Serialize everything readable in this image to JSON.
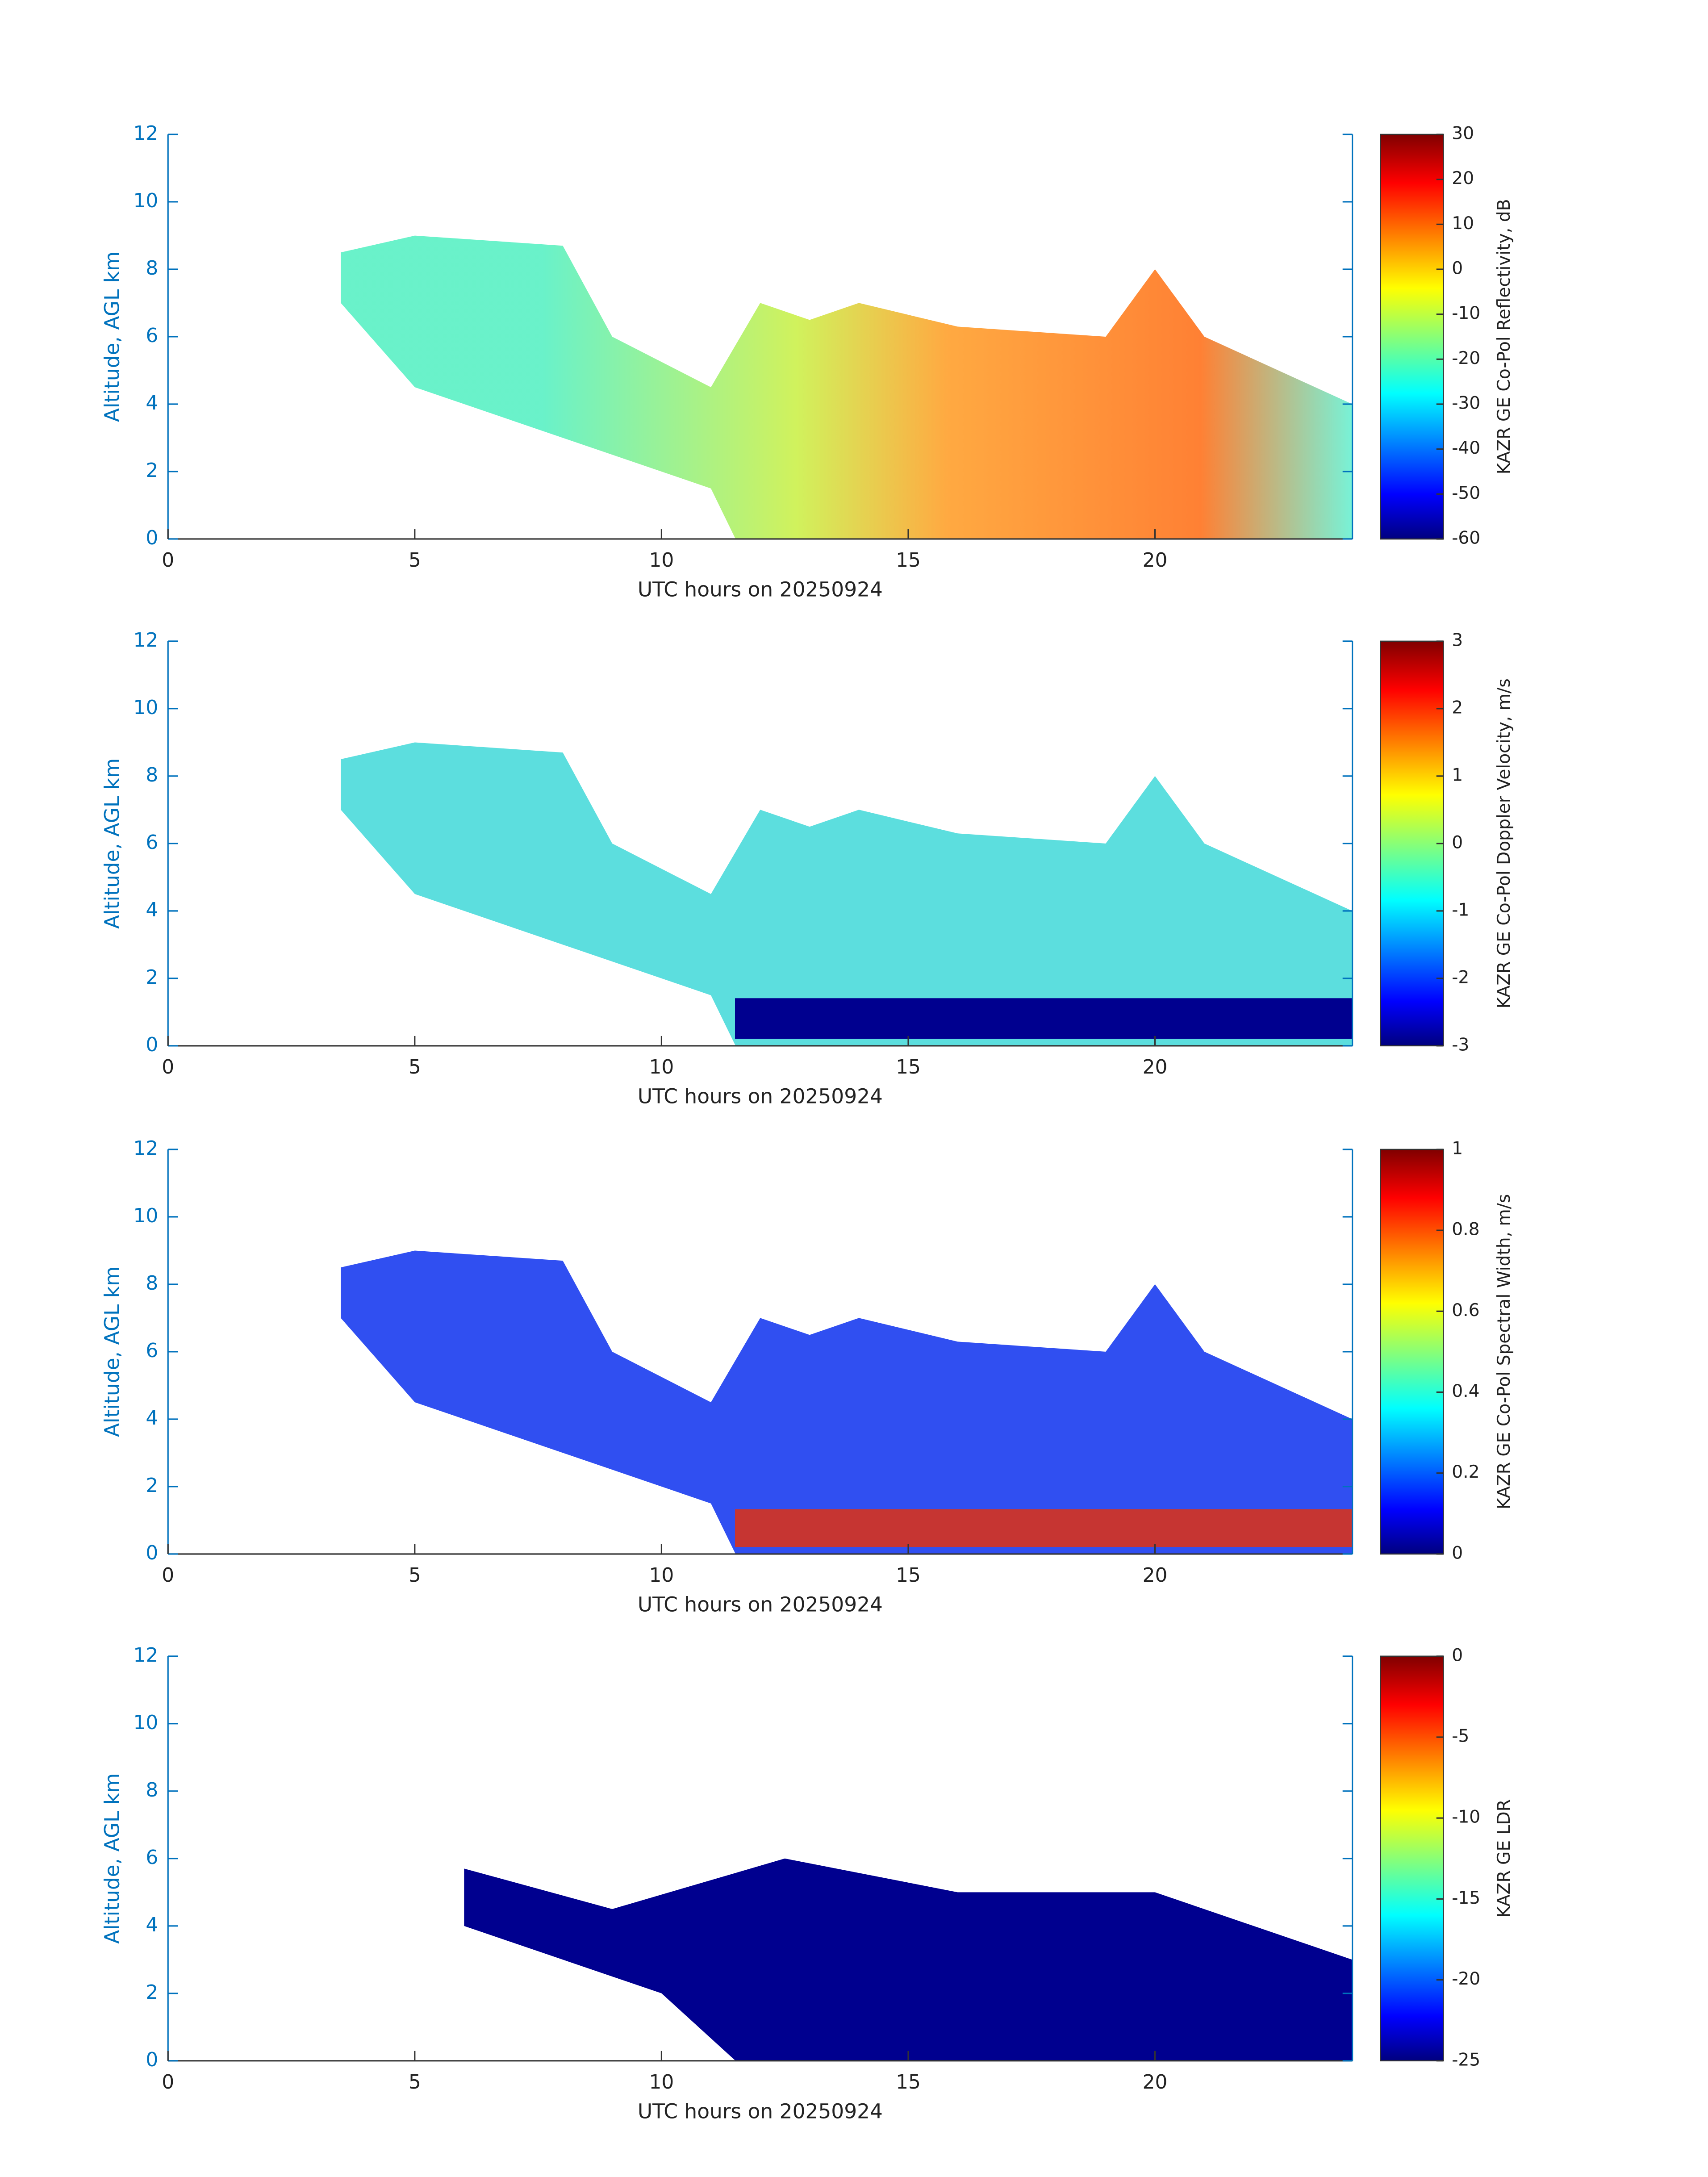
{
  "chart_data": [
    {
      "type": "heatmap",
      "x_label": "UTC hours on 20250924",
      "y_label": "Altitude, AGL km",
      "xlim": [
        0,
        24
      ],
      "xticks": [
        0,
        5,
        10,
        15,
        20
      ],
      "ylim": [
        0,
        12
      ],
      "yticks": [
        0,
        2,
        4,
        6,
        8,
        10,
        12
      ],
      "colorbar_label": "KAZR GE Co-Pol Reflectivity, dB",
      "colormap": "jet",
      "clim": [
        -60,
        30
      ],
      "cticks": [
        -60,
        -50,
        -40,
        -30,
        -20,
        -10,
        0,
        10,
        20,
        30
      ]
    },
    {
      "type": "heatmap",
      "x_label": "UTC hours on 20250924",
      "y_label": "Altitude, AGL km",
      "xlim": [
        0,
        24
      ],
      "xticks": [
        0,
        5,
        10,
        15,
        20
      ],
      "ylim": [
        0,
        12
      ],
      "yticks": [
        0,
        2,
        4,
        6,
        8,
        10,
        12
      ],
      "colorbar_label": "KAZR GE Co-Pol Doppler Velocity, m/s",
      "colormap": "jet",
      "clim": [
        -3,
        3
      ],
      "cticks": [
        -3,
        -2,
        -1,
        0,
        1,
        2,
        3
      ]
    },
    {
      "type": "heatmap",
      "x_label": "UTC hours on 20250924",
      "y_label": "Altitude, AGL km",
      "xlim": [
        0,
        24
      ],
      "xticks": [
        0,
        5,
        10,
        15,
        20
      ],
      "ylim": [
        0,
        12
      ],
      "yticks": [
        0,
        2,
        4,
        6,
        8,
        10,
        12
      ],
      "colorbar_label": "KAZR GE Co-Pol Spectral Width, m/s",
      "colormap": "jet",
      "clim": [
        0,
        1
      ],
      "cticks": [
        0,
        0.2,
        0.4,
        0.6,
        0.8,
        1
      ]
    },
    {
      "type": "heatmap",
      "x_label": "UTC hours on 20250924",
      "y_label": "Altitude, AGL km",
      "xlim": [
        0,
        24
      ],
      "xticks": [
        0,
        5,
        10,
        15,
        20
      ],
      "ylim": [
        0,
        12
      ],
      "yticks": [
        0,
        2,
        4,
        6,
        8,
        10,
        12
      ],
      "colorbar_label": "KAZR GE LDR",
      "colormap": "jet",
      "clim": [
        -25,
        0
      ],
      "cticks": [
        -25,
        -20,
        -15,
        -10,
        -5,
        0
      ]
    }
  ]
}
